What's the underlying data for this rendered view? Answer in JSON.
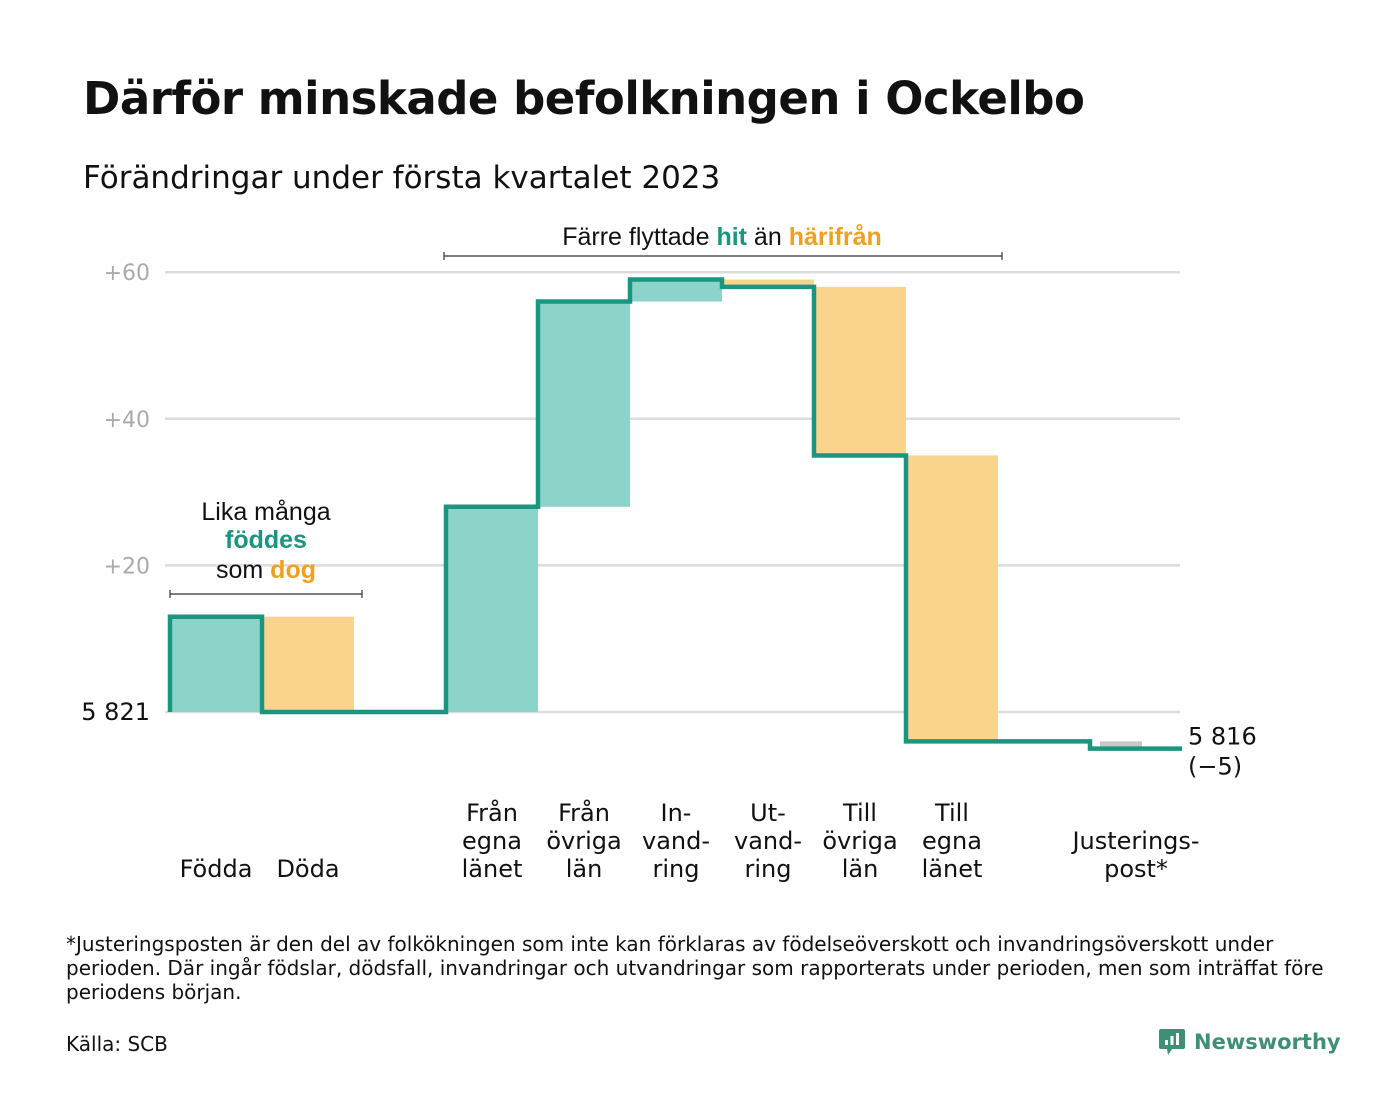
{
  "title": "Därför minskade befolkningen i Ockelbo",
  "subtitle": "Förändringar under första kvartalet 2023",
  "colors": {
    "inflow": "#8cd4ca",
    "outflow": "#fad48c",
    "line": "#1a9580",
    "adjustment": "#c8c8c8",
    "accent_teal": "#1a9580",
    "accent_orange": "#f0a020",
    "grid": "#dcdcdc",
    "tick_text": "#aaaaaa",
    "brand": "#3f8f78"
  },
  "chart_data": {
    "type": "waterfall",
    "start_label": "5 821",
    "end_label_lines": [
      "5 816",
      "(−5)"
    ],
    "y_ticks": [
      {
        "value": 20,
        "label": "+20"
      },
      {
        "value": 40,
        "label": "+40"
      },
      {
        "value": 60,
        "label": "+60"
      }
    ],
    "ylim": [
      -10,
      63
    ],
    "steps": [
      {
        "label_lines": [
          "Födda"
        ],
        "change": 13,
        "kind": "in"
      },
      {
        "label_lines": [
          "Döda"
        ],
        "change": -13,
        "kind": "out"
      },
      {
        "label_lines": [],
        "change": 0,
        "kind": "none"
      },
      {
        "label_lines": [
          "Från",
          "egna",
          "länet"
        ],
        "change": 28,
        "kind": "in"
      },
      {
        "label_lines": [
          "Från",
          "övriga",
          "län"
        ],
        "change": 28,
        "kind": "in"
      },
      {
        "label_lines": [
          "In-",
          "vand-",
          "ring"
        ],
        "change": 3,
        "kind": "in"
      },
      {
        "label_lines": [
          "Ut-",
          "vand-",
          "ring"
        ],
        "change": -1,
        "kind": "out"
      },
      {
        "label_lines": [
          "Till",
          "övriga",
          "län"
        ],
        "change": -23,
        "kind": "out"
      },
      {
        "label_lines": [
          "Till",
          "egna",
          "länet"
        ],
        "change": -39,
        "kind": "out"
      },
      {
        "label_lines": [],
        "change": 0,
        "kind": "none"
      },
      {
        "label_lines": [
          "Justerings-",
          "post*"
        ],
        "change": -1,
        "kind": "adjust"
      }
    ],
    "annotations": [
      {
        "lines": [
          [
            {
              "text": "Lika många",
              "color": "dark"
            }
          ],
          [
            {
              "text": "föddes",
              "color": "teal"
            }
          ],
          [
            {
              "text": "som ",
              "color": "dark"
            },
            {
              "text": "dog",
              "color": "orange"
            }
          ]
        ]
      },
      {
        "lines": [
          [
            {
              "text": "Färre flyttade ",
              "color": "dark"
            },
            {
              "text": "hit",
              "color": "teal"
            },
            {
              "text": " än ",
              "color": "dark"
            },
            {
              "text": "härifrån",
              "color": "orange"
            }
          ]
        ]
      }
    ]
  },
  "footnote": "*Justeringsposten är den del av folkökningen som inte kan förklaras av födelseöverskott och invandringsöverskott under perioden. Där ingår födslar, dödsfall, invandringar och utvandringar som rapporterats under perioden, men som inträffat före periodens början.",
  "source": "Källa: SCB",
  "brand": {
    "name": "Newsworthy",
    "icon": "newsworthy-logo-icon"
  }
}
